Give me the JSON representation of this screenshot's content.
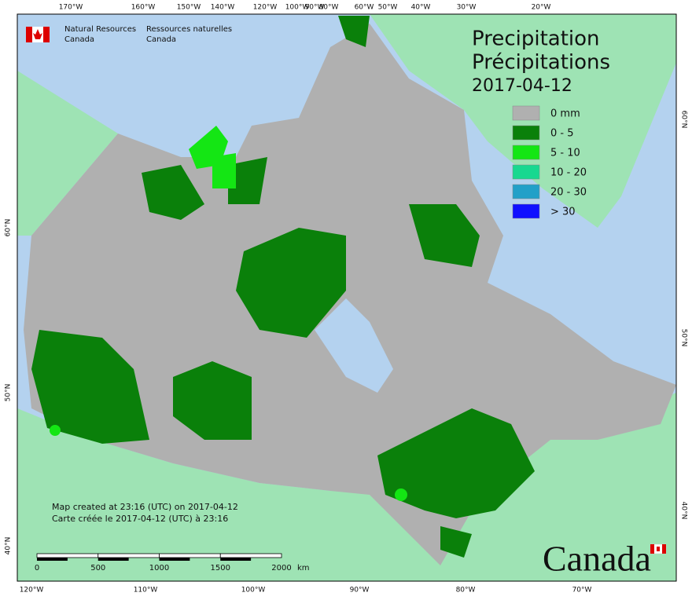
{
  "header": {
    "agency_en": "Natural Resources",
    "country_en": "Canada",
    "agency_fr": "Ressources naturelles",
    "country_fr": "Canada"
  },
  "title": {
    "en": "Precipitation",
    "fr": "Précipitations",
    "date": "2017-04-12"
  },
  "legend": [
    {
      "label": "0 mm",
      "color": "#b0b0b0"
    },
    {
      "label": "0 - 5",
      "color": "#0a800a"
    },
    {
      "label": "5 - 10",
      "color": "#14e614"
    },
    {
      "label": "10 - 20",
      "color": "#18d890"
    },
    {
      "label": "20 - 30",
      "color": "#22a0c8"
    },
    {
      "label": "> 30",
      "color": "#1010ff"
    }
  ],
  "graticule": {
    "top": [
      "170°W",
      "160°W",
      "150°W",
      "140°W",
      "120°W",
      "100°W",
      "90°W",
      "80°W",
      "60°W",
      "50°W",
      "40°W",
      "30°W",
      "20°W"
    ],
    "bottom": [
      "120°W",
      "110°W",
      "100°W",
      "90°W",
      "80°W",
      "70°W"
    ],
    "left": [
      "60°N",
      "50°N",
      "40°N"
    ],
    "right": [
      "60°N",
      "50°N",
      "40°N"
    ]
  },
  "footer": {
    "created_en": "Map created at 23:16 (UTC) on 2017-04-12",
    "created_fr": "Carte créée le 2017-04-12 (UTC) à 23:16"
  },
  "scale": {
    "ticks": [
      0,
      500,
      1000,
      1500,
      2000
    ],
    "unit": "km"
  },
  "wordmark": "Canada"
}
